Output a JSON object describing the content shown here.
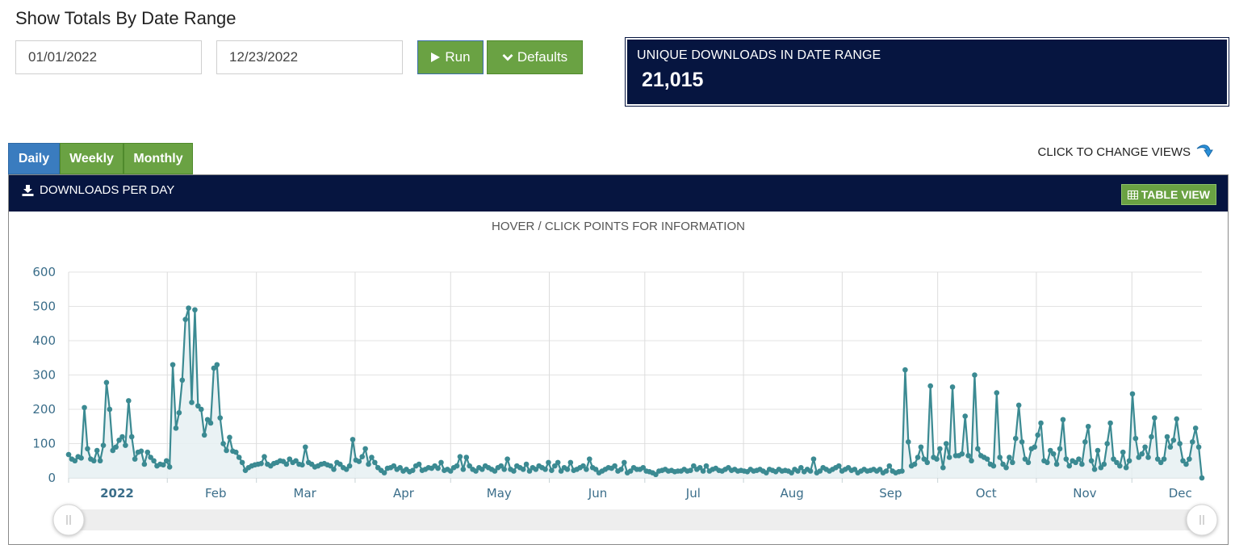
{
  "page": {
    "title": "Show Totals By Date Range"
  },
  "filters": {
    "start_date": "01/01/2022",
    "end_date": "12/23/2022",
    "run_label": "Run",
    "defaults_label": "Defaults"
  },
  "stat": {
    "label": "UNIQUE DOWNLOADS IN DATE RANGE",
    "value": "21,015"
  },
  "tabs": [
    {
      "label": "Daily",
      "active": true
    },
    {
      "label": "Weekly",
      "active": false
    },
    {
      "label": "Monthly",
      "active": false
    }
  ],
  "change_views_label": "CLICK TO CHANGE VIEWS",
  "panel": {
    "title": "DOWNLOADS PER DAY",
    "table_view_label": "TABLE VIEW",
    "hover_note": "HOVER / CLICK POINTS FOR INFORMATION"
  },
  "colors": {
    "navy": "#061540",
    "green": "#6aa243",
    "blue_tab": "#3a7cbf",
    "series": "#3b8a92",
    "fill": "#e6f0f2"
  },
  "chart_data": {
    "type": "area",
    "title": "",
    "xlabel": "",
    "ylabel": "",
    "ylim": [
      0,
      600
    ],
    "yticks": [
      0,
      100,
      200,
      300,
      400,
      500,
      600
    ],
    "x_start": "2022-01-01",
    "x_end": "2022-12-23",
    "x_tick_labels": [
      "2022",
      "Feb",
      "Mar",
      "Apr",
      "May",
      "Jun",
      "Jul",
      "Aug",
      "Sep",
      "Oct",
      "Nov",
      "Dec"
    ],
    "grid": true,
    "series": [
      {
        "values": [
          68,
          55,
          50,
          62,
          58,
          205,
          85,
          55,
          50,
          80,
          50,
          95,
          278,
          200,
          80,
          90,
          110,
          120,
          95,
          225,
          120,
          55,
          75,
          78,
          40,
          75,
          60,
          50,
          35,
          40,
          38,
          50,
          32,
          330,
          145,
          190,
          285,
          462,
          495,
          220,
          490,
          210,
          200,
          125,
          170,
          160,
          320,
          330,
          175,
          100,
          80,
          118,
          78,
          75,
          60,
          45,
          22,
          30,
          35,
          38,
          40,
          42,
          62,
          40,
          35,
          42,
          45,
          50,
          48,
          40,
          55,
          45,
          50,
          40,
          38,
          90,
          45,
          40,
          32,
          35,
          40,
          42,
          38,
          35,
          25,
          45,
          40,
          30,
          25,
          35,
          112,
          52,
          48,
          62,
          85,
          40,
          60,
          45,
          30,
          22,
          15,
          28,
          30,
          35,
          25,
          30,
          20,
          25,
          18,
          22,
          35,
          40,
          22,
          25,
          30,
          28,
          35,
          28,
          45,
          22,
          25,
          20,
          30,
          35,
          62,
          25,
          60,
          35,
          25,
          20,
          30,
          25,
          35,
          30,
          25,
          20,
          30,
          35,
          25,
          55,
          25,
          20,
          35,
          30,
          25,
          40,
          20,
          30,
          25,
          35,
          30,
          25,
          45,
          22,
          35,
          45,
          20,
          30,
          25,
          45,
          22,
          25,
          30,
          35,
          25,
          55,
          30,
          25,
          15,
          20,
          25,
          30,
          28,
          35,
          20,
          25,
          45,
          15,
          20,
          30,
          25,
          25,
          30,
          20,
          18,
          15,
          10,
          20,
          22,
          25,
          20,
          22,
          18,
          20,
          20,
          25,
          20,
          22,
          35,
          25,
          30,
          20,
          35,
          20,
          25,
          28,
          22,
          20,
          25,
          30,
          22,
          25,
          20,
          22,
          20,
          18,
          25,
          20,
          22,
          25,
          20,
          15,
          25,
          22,
          18,
          25,
          20,
          22,
          20,
          15,
          25,
          20,
          30,
          18,
          25,
          20,
          55,
          15,
          20,
          30,
          25,
          20,
          25,
          30,
          35,
          20,
          25,
          30,
          22,
          25,
          15,
          20,
          25,
          20,
          22,
          25,
          20,
          25,
          15,
          20,
          35,
          20,
          15,
          18,
          20,
          315,
          105,
          35,
          40,
          60,
          90,
          55,
          45,
          268,
          60,
          55,
          85,
          30,
          100,
          60,
          265,
          65,
          65,
          70,
          180,
          65,
          50,
          300,
          85,
          65,
          60,
          55,
          40,
          35,
          248,
          60,
          40,
          30,
          60,
          45,
          115,
          212,
          105,
          55,
          45,
          85,
          90,
          125,
          160,
          50,
          45,
          80,
          70,
          40,
          85,
          170,
          55,
          35,
          50,
          45,
          55,
          40,
          105,
          150,
          50,
          25,
          80,
          30,
          40,
          100,
          160,
          55,
          45,
          35,
          75,
          30,
          50,
          245,
          115,
          60,
          70,
          90,
          60,
          120,
          175,
          55,
          45,
          55,
          120,
          90,
          110,
          172,
          100,
          50,
          40,
          55,
          105,
          145,
          90,
          0
        ]
      }
    ]
  }
}
